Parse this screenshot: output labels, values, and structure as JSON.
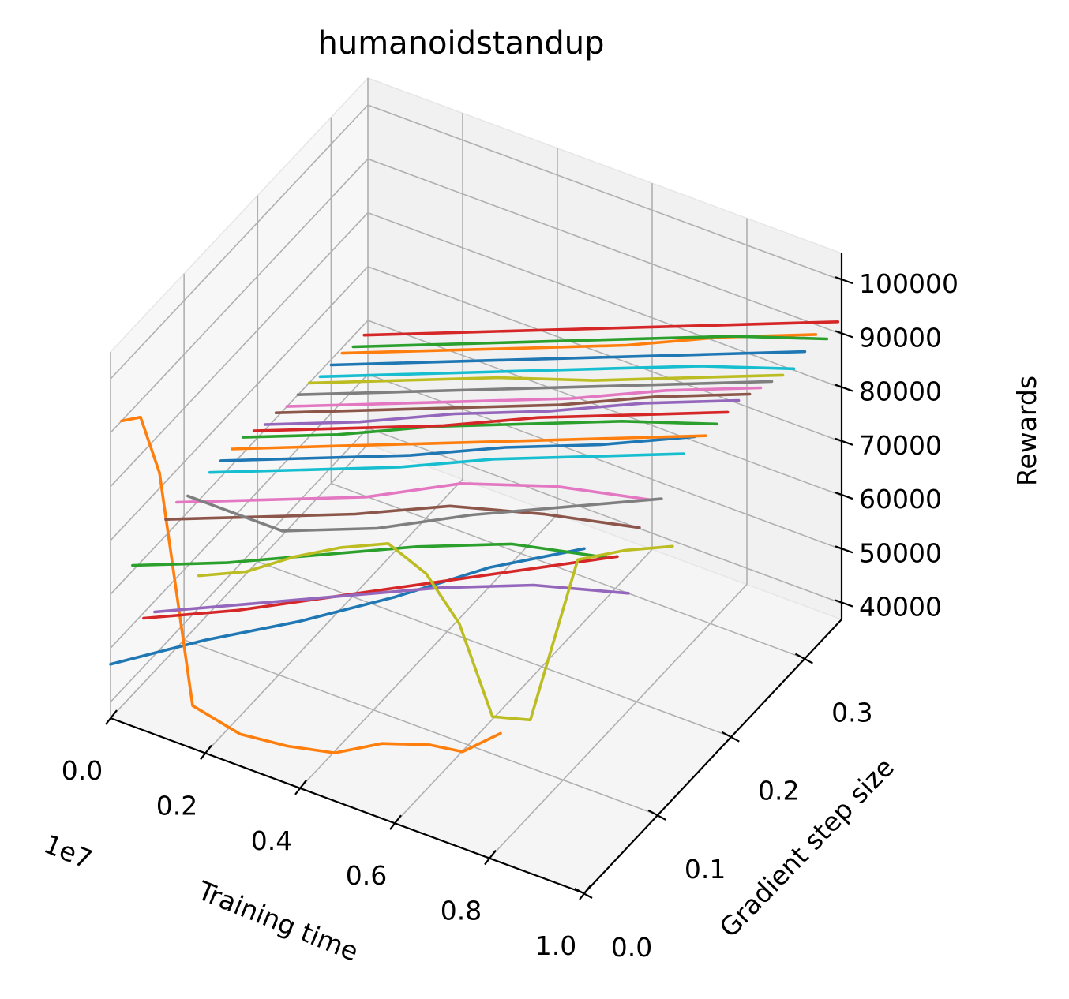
{
  "chart_data": {
    "type": "line",
    "projection": "3d",
    "title": "humanoidstandup",
    "xlabel": "Training time",
    "ylabel": "Gradient step size",
    "zlabel": "Rewards",
    "x_offset_label": "1e7",
    "xlim": [
      0,
      1.0
    ],
    "ylim": [
      0,
      0.35
    ],
    "zlim": [
      37000,
      105000
    ],
    "x_ticks": [
      0.0,
      0.2,
      0.4,
      0.6,
      0.8,
      1.0
    ],
    "x_tick_labels": [
      "0.0",
      "0.2",
      "0.4",
      "0.6",
      "0.8",
      "1.0"
    ],
    "y_ticks": [
      0.0,
      0.1,
      0.2,
      0.3
    ],
    "y_tick_labels": [
      "0.0",
      "0.1",
      "0.2",
      "0.3"
    ],
    "z_ticks": [
      40000,
      50000,
      60000,
      70000,
      80000,
      90000,
      100000
    ],
    "z_tick_labels": [
      "40000",
      "50000",
      "60000",
      "70000",
      "80000",
      "90000",
      "100000"
    ],
    "grid": true,
    "colors": [
      "#1f77b4",
      "#ff7f0e",
      "#2ca02c",
      "#d62728",
      "#9467bd",
      "#8c564b",
      "#e377c2",
      "#7f7f7f",
      "#bcbd22",
      "#17becf"
    ],
    "series": [
      {
        "step": 0.0,
        "x": [
          0.0,
          0.2,
          0.4,
          0.6,
          0.8,
          1.0
        ],
        "values": [
          47000,
          58000,
          68000,
          79000,
          91000,
          101000
        ]
      },
      {
        "step": 0.015,
        "x": [
          0.0,
          0.04,
          0.08,
          0.15,
          0.25,
          0.35,
          0.45,
          0.55,
          0.65,
          0.72,
          0.8
        ],
        "values": [
          90000,
          92000,
          83000,
          42000,
          40000,
          41000,
          43000,
          48000,
          51000,
          52000,
          58000
        ]
      },
      {
        "step": 0.03,
        "x": [
          0.0,
          0.2,
          0.4,
          0.6,
          0.8,
          1.0
        ],
        "values": [
          61000,
          68000,
          76000,
          84000,
          91000,
          95000
        ]
      },
      {
        "step": 0.045,
        "x": [
          0.0,
          0.2,
          0.4,
          0.6,
          0.8,
          1.0
        ],
        "values": [
          49000,
          57000,
          66000,
          75000,
          84000,
          93000
        ]
      },
      {
        "step": 0.06,
        "x": [
          0.0,
          0.2,
          0.4,
          0.6,
          0.8,
          1.0
        ],
        "values": [
          48000,
          56000,
          64000,
          72000,
          79000,
          84000
        ]
      },
      {
        "step": 0.075,
        "x": [
          0.0,
          0.2,
          0.4,
          0.6,
          0.8,
          1.0
        ],
        "values": [
          63000,
          70000,
          77000,
          85000,
          90000,
          94000
        ]
      },
      {
        "step": 0.09,
        "x": [
          0.0,
          0.2,
          0.4,
          0.6,
          0.8,
          1.0
        ],
        "values": [
          64000,
          71000,
          78000,
          87000,
          93000,
          97000
        ]
      },
      {
        "step": 0.105,
        "x": [
          0.0,
          0.2,
          0.4,
          0.6,
          0.8,
          1.0
        ],
        "values": [
          63000,
          63000,
          70000,
          79000,
          87000,
          95000
        ]
      },
      {
        "step": 0.12,
        "x": [
          0.0,
          0.1,
          0.2,
          0.3,
          0.4,
          0.48,
          0.55,
          0.62,
          0.7,
          0.8,
          0.9,
          1.0
        ],
        "values": [
          46000,
          50000,
          56000,
          61000,
          65000,
          62000,
          55000,
          40000,
          42000,
          75000,
          80000,
          84000
        ]
      },
      {
        "step": 0.135,
        "x": [
          0.0,
          0.2,
          0.4,
          0.6,
          0.8,
          1.0
        ],
        "values": [
          63000,
          70000,
          77000,
          85000,
          92000,
          99000
        ]
      },
      {
        "step": 0.15,
        "x": [
          0.0,
          0.2,
          0.4,
          0.6,
          0.8,
          1.0
        ],
        "values": [
          63000,
          70000,
          77000,
          85000,
          92000,
          100000
        ]
      },
      {
        "step": 0.165,
        "x": [
          0.0,
          0.2,
          0.4,
          0.6,
          0.8,
          1.0
        ],
        "values": [
          63000,
          70000,
          77000,
          84000,
          91000,
          98000
        ]
      },
      {
        "step": 0.18,
        "x": [
          0.0,
          0.2,
          0.4,
          0.6,
          0.8,
          1.0
        ],
        "values": [
          63000,
          70000,
          78000,
          85000,
          92000,
          98000
        ]
      },
      {
        "step": 0.195,
        "x": [
          0.0,
          0.2,
          0.4,
          0.6,
          0.8,
          1.0
        ],
        "values": [
          62000,
          69000,
          76000,
          84000,
          91000,
          98000
        ]
      },
      {
        "step": 0.21,
        "x": [
          0.0,
          0.2,
          0.4,
          0.6,
          0.8,
          1.0
        ],
        "values": [
          61000,
          68000,
          76000,
          83000,
          91000,
          98000
        ]
      },
      {
        "step": 0.225,
        "x": [
          0.0,
          0.2,
          0.4,
          0.6,
          0.8,
          1.0
        ],
        "values": [
          61000,
          68000,
          75000,
          82000,
          90000,
          97000
        ]
      },
      {
        "step": 0.24,
        "x": [
          0.0,
          0.2,
          0.4,
          0.6,
          0.8,
          1.0
        ],
        "values": [
          60000,
          67000,
          74000,
          81000,
          89000,
          96000
        ]
      },
      {
        "step": 0.255,
        "x": [
          0.0,
          0.2,
          0.4,
          0.6,
          0.8,
          1.0
        ],
        "values": [
          60000,
          67000,
          74000,
          81000,
          88000,
          95000
        ]
      },
      {
        "step": 0.27,
        "x": [
          0.0,
          0.2,
          0.4,
          0.6,
          0.8,
          1.0
        ],
        "values": [
          60000,
          67000,
          74000,
          80000,
          87000,
          94000
        ]
      },
      {
        "step": 0.285,
        "x": [
          0.0,
          0.2,
          0.4,
          0.6,
          0.8,
          1.0
        ],
        "values": [
          59000,
          66000,
          73000,
          80000,
          87000,
          93000
        ]
      },
      {
        "step": 0.3,
        "x": [
          0.0,
          0.2,
          0.4,
          0.6,
          0.8,
          1.0
        ],
        "values": [
          59000,
          66000,
          73000,
          80000,
          87000,
          94000
        ]
      },
      {
        "step": 0.315,
        "x": [
          0.0,
          0.2,
          0.4,
          0.6,
          0.8,
          1.0
        ],
        "values": [
          59000,
          66000,
          73000,
          80000,
          88000,
          95000
        ]
      },
      {
        "step": 0.33,
        "x": [
          0.0,
          0.2,
          0.4,
          0.6,
          0.8,
          1.0
        ],
        "values": [
          58000,
          65000,
          72000,
          79000,
          86000,
          92000
        ]
      },
      {
        "step": 0.345,
        "x": [
          0.0,
          0.2,
          0.4,
          0.6,
          0.8,
          1.0
        ],
        "values": [
          58000,
          65000,
          72000,
          79000,
          86000,
          93000
        ]
      }
    ]
  }
}
